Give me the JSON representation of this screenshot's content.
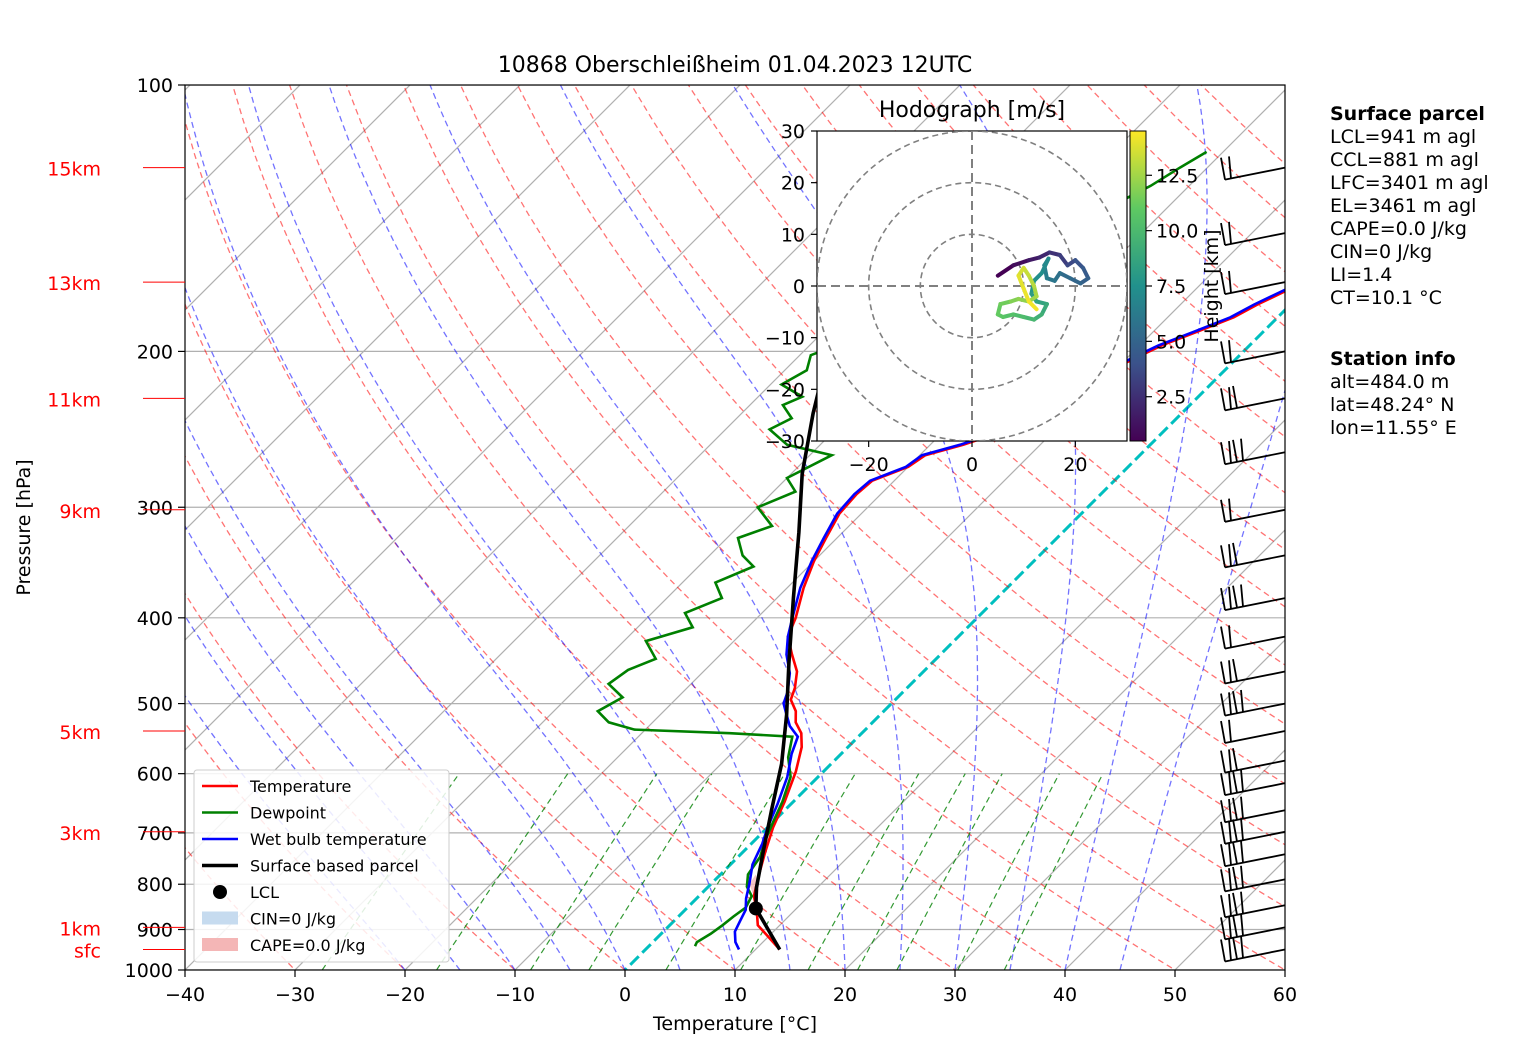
{
  "title": "10868 Oberschleißheim 01.04.2023 12UTC",
  "colors": {
    "temperature": "#ff0000",
    "dewpoint": "#008000",
    "wetbulb": "#0000ff",
    "parcel": "#000000",
    "dry_adiabat": "#ff0000",
    "moist_adiabat": "#0000ff",
    "mixing_ratio": "#008000",
    "isotherm": "#00bfbf",
    "height": "#ff0000"
  },
  "chart_data": {
    "type": "line",
    "subtype": "skew-T log-P",
    "xlabel": "Temperature [°C]",
    "ylabel": "Pressure [hPa]",
    "xlim": [
      -40,
      60
    ],
    "ylim": [
      1000,
      100
    ],
    "x_ticks": [
      -40,
      -30,
      -20,
      -10,
      0,
      10,
      20,
      30,
      40,
      50,
      60
    ],
    "y_ticks": [
      100,
      200,
      300,
      400,
      500,
      600,
      700,
      800,
      900,
      1000
    ],
    "grid": true,
    "height_labels": [
      {
        "label": "15km",
        "p": 124
      },
      {
        "label": "13km",
        "p": 167
      },
      {
        "label": "11km",
        "p": 226
      },
      {
        "label": "9km",
        "p": 302
      },
      {
        "label": "5km",
        "p": 537
      },
      {
        "label": "3km",
        "p": 698
      },
      {
        "label": "1km",
        "p": 895
      },
      {
        "label": "sfc",
        "p": 948
      }
    ],
    "highlight_isotherm_c": 0,
    "series": [
      {
        "name": "Temperature",
        "points": [
          [
            12.2,
            948
          ],
          [
            10,
            917
          ],
          [
            8,
            890
          ],
          [
            6.5,
            855
          ],
          [
            5,
            825
          ],
          [
            3.5,
            780
          ],
          [
            2,
            735
          ],
          [
            0.5,
            690
          ],
          [
            -0.8,
            645
          ],
          [
            -2.5,
            597
          ],
          [
            -4.2,
            560
          ],
          [
            -5.5,
            540
          ],
          [
            -7,
            525
          ],
          [
            -8,
            510
          ],
          [
            -9.5,
            495
          ],
          [
            -10.2,
            480
          ],
          [
            -11.5,
            460
          ],
          [
            -13.5,
            440
          ],
          [
            -15.5,
            420
          ],
          [
            -16.5,
            400
          ],
          [
            -18.5,
            370
          ],
          [
            -20,
            345
          ],
          [
            -21,
            325
          ],
          [
            -22,
            305
          ],
          [
            -22.2,
            290
          ],
          [
            -22,
            280
          ],
          [
            -20,
            270
          ],
          [
            -19.5,
            262
          ],
          [
            -17,
            255
          ],
          [
            -14.5,
            246
          ],
          [
            -13,
            237
          ],
          [
            -12,
            225
          ],
          [
            -11.5,
            215
          ],
          [
            -9.5,
            205
          ],
          [
            -8,
            197
          ],
          [
            -6,
            190
          ],
          [
            -4,
            183
          ],
          [
            -3,
            177
          ],
          [
            -1,
            168
          ],
          [
            -0.5,
            160
          ],
          [
            1,
            152
          ],
          [
            2,
            145
          ],
          [
            3,
            138
          ],
          [
            5,
            132
          ],
          [
            6,
            128
          ],
          [
            7.5,
            125
          ],
          [
            9,
            122
          ],
          [
            10,
            118
          ],
          [
            10.5,
            115
          ],
          [
            10.2,
            113
          ]
        ]
      },
      {
        "name": "Dewpoint",
        "points": [
          [
            4.2,
            940
          ],
          [
            4,
            930
          ],
          [
            4.5,
            910
          ],
          [
            4.8,
            890
          ],
          [
            5,
            870
          ],
          [
            5.3,
            850
          ],
          [
            4.8,
            825
          ],
          [
            3.5,
            805
          ],
          [
            2.5,
            780
          ],
          [
            2,
            745
          ],
          [
            1,
            715
          ],
          [
            0,
            680
          ],
          [
            -1,
            645
          ],
          [
            -2.5,
            605
          ],
          [
            -4.5,
            575
          ],
          [
            -6,
            545
          ],
          [
            -12,
            540
          ],
          [
            -21,
            535
          ],
          [
            -24,
            525
          ],
          [
            -26,
            510
          ],
          [
            -25,
            492
          ],
          [
            -27.5,
            475
          ],
          [
            -27,
            458
          ],
          [
            -25.5,
            445
          ],
          [
            -28,
            425
          ],
          [
            -25,
            410
          ],
          [
            -27,
            395
          ],
          [
            -25,
            380
          ],
          [
            -27,
            365
          ],
          [
            -25,
            350
          ],
          [
            -27,
            340
          ],
          [
            -29,
            325
          ],
          [
            -27,
            315
          ],
          [
            -30,
            300
          ],
          [
            -28,
            288
          ],
          [
            -30,
            278
          ],
          [
            -28,
            262
          ],
          [
            -33,
            255
          ],
          [
            -36,
            245
          ],
          [
            -35,
            238
          ],
          [
            -37,
            230
          ],
          [
            -36,
            225
          ],
          [
            -39,
            218
          ],
          [
            -38,
            210
          ],
          [
            -39,
            202
          ],
          [
            -37,
            195
          ],
          [
            -36,
            188
          ],
          [
            -34,
            180
          ],
          [
            -32,
            172
          ],
          [
            -30,
            165
          ],
          [
            -29,
            158
          ],
          [
            -27.5,
            150
          ],
          [
            -26.5,
            143
          ],
          [
            -25,
            136
          ],
          [
            -23.5,
            130
          ],
          [
            -22.5,
            124
          ],
          [
            -21.5,
            119
          ]
        ]
      },
      {
        "name": "Wet bulb temperature",
        "points": [
          [
            8.5,
            948
          ],
          [
            7.5,
            930
          ],
          [
            6.5,
            905
          ],
          [
            6,
            880
          ],
          [
            5.5,
            855
          ],
          [
            4.5,
            830
          ],
          [
            3.5,
            800
          ],
          [
            2,
            760
          ],
          [
            1,
            720
          ],
          [
            0,
            690
          ],
          [
            -1.2,
            650
          ],
          [
            -2.8,
            605
          ],
          [
            -4.5,
            570
          ],
          [
            -5.5,
            545
          ],
          [
            -7.2,
            530
          ],
          [
            -8.5,
            515
          ],
          [
            -9.8,
            500
          ],
          [
            -10.5,
            485
          ],
          [
            -12,
            462
          ],
          [
            -14,
            440
          ],
          [
            -15.5,
            420
          ],
          [
            -16.8,
            400
          ],
          [
            -18.8,
            370
          ],
          [
            -20.2,
            345
          ],
          [
            -21.2,
            325
          ],
          [
            -22.2,
            305
          ],
          [
            -22.4,
            290
          ],
          [
            -22.2,
            280
          ],
          [
            -20.2,
            270
          ],
          [
            -19.8,
            262
          ],
          [
            -17.3,
            255
          ],
          [
            -14.8,
            246
          ],
          [
            -13.3,
            237
          ],
          [
            -12.3,
            225
          ],
          [
            -11.8,
            215
          ],
          [
            -9.8,
            205
          ],
          [
            -8.3,
            197
          ],
          [
            -6.3,
            190
          ],
          [
            -4.3,
            183
          ],
          [
            -3.3,
            177
          ],
          [
            -1.3,
            168
          ],
          [
            -0.8,
            160
          ],
          [
            0.7,
            152
          ],
          [
            1.7,
            145
          ],
          [
            2.7,
            138
          ],
          [
            4.7,
            132
          ],
          [
            5.7,
            128
          ],
          [
            7.2,
            125
          ],
          [
            8.7,
            122
          ],
          [
            9.7,
            118
          ],
          [
            10.2,
            115
          ],
          [
            9.9,
            113
          ]
        ]
      },
      {
        "name": "Surface based parcel",
        "points": [
          [
            12.2,
            948
          ],
          [
            6.3,
            852
          ],
          [
            4.5,
            808
          ],
          [
            2,
            740
          ],
          [
            -1.2,
            660
          ],
          [
            -4.5,
            585
          ],
          [
            -8.5,
            515
          ],
          [
            -13,
            450
          ],
          [
            -18.5,
            380
          ],
          [
            -24,
            320
          ],
          [
            -29,
            275
          ],
          [
            -33.5,
            235
          ],
          [
            -37.5,
            202
          ],
          [
            -40.8,
            176
          ],
          [
            -44.3,
            155
          ]
        ]
      }
    ],
    "lcl": {
      "label": "LCL",
      "t": 6.3,
      "p": 852
    },
    "legend": {
      "placement": "lower-left",
      "entries": [
        "Temperature",
        "Dewpoint",
        "Wet bulb temperature",
        "Surface based parcel",
        "LCL",
        "CIN=0 J/kg",
        "CAPE=0.0 J/kg"
      ]
    },
    "wind_barbs_p": [
      124,
      147,
      167,
      200,
      226,
      260,
      302,
      340,
      380,
      420,
      460,
      500,
      537,
      580,
      615,
      660,
      698,
      740,
      790,
      845,
      895,
      948
    ],
    "hodograph": {
      "title": "Hodograph [m/s]",
      "xlim": [
        -30,
        30
      ],
      "ylim": [
        -30,
        30
      ],
      "ticks": [
        -20,
        0,
        20
      ],
      "yticks": [
        -30,
        -20,
        -10,
        0,
        10,
        20,
        30
      ],
      "rings": [
        10,
        20,
        30
      ],
      "colorbar_label": "Height [km]",
      "colorbar_ticks": [
        "2.5",
        "5.0",
        "7.5",
        "10.0",
        "12.5"
      ],
      "colorbar_range": [
        0.5,
        14.5
      ],
      "points": [
        [
          5,
          2,
          0.5
        ],
        [
          8,
          4,
          1.0
        ],
        [
          11,
          5,
          1.6
        ],
        [
          13,
          5.5,
          2.1
        ],
        [
          15,
          6.5,
          2.6
        ],
        [
          17,
          6,
          3.1
        ],
        [
          18.5,
          4,
          3.6
        ],
        [
          20,
          5,
          4.1
        ],
        [
          21.5,
          3.5,
          4.5
        ],
        [
          22.5,
          1.5,
          4.8
        ],
        [
          21,
          0.5,
          5.1
        ],
        [
          19,
          1.5,
          5.4
        ],
        [
          17,
          2.5,
          5.7
        ],
        [
          16,
          1,
          6.0
        ],
        [
          14.5,
          1.5,
          6.4
        ],
        [
          14,
          4,
          6.8
        ],
        [
          14.8,
          5.3,
          7.1
        ],
        [
          13.5,
          2.5,
          7.4
        ],
        [
          12,
          1,
          7.8
        ],
        [
          11.5,
          -1.5,
          8.2
        ],
        [
          12.5,
          -3,
          8.6
        ],
        [
          14.5,
          -3.5,
          9.0
        ],
        [
          13.5,
          -5.5,
          9.4
        ],
        [
          12,
          -6.5,
          9.8
        ],
        [
          10,
          -6,
          10.2
        ],
        [
          8,
          -5.5,
          10.5
        ],
        [
          6,
          -6,
          10.8
        ],
        [
          5,
          -5.5,
          11.1
        ],
        [
          5.5,
          -3.5,
          11.4
        ],
        [
          7.5,
          -3,
          11.8
        ],
        [
          9,
          -2.5,
          12.1
        ],
        [
          11,
          -3,
          12.4
        ],
        [
          12.5,
          -2,
          12.7
        ],
        [
          12,
          0,
          13.0
        ],
        [
          11,
          2,
          13.3
        ],
        [
          10,
          3.5,
          13.6
        ],
        [
          9,
          2,
          13.9
        ],
        [
          10,
          -0.5,
          14.1
        ],
        [
          11,
          -3,
          14.3
        ],
        [
          12.5,
          -4.5,
          14.5
        ]
      ]
    }
  },
  "surface_parcel": {
    "header": "Surface parcel",
    "lines": [
      "LCL=941 m agl",
      "CCL=881 m agl",
      "LFC=3401 m agl",
      "EL=3461 m agl",
      "CAPE=0.0 J/kg",
      "CIN=0 J/kg",
      "LI=1.4",
      "CT=10.1 °C"
    ]
  },
  "station_info": {
    "header": "Station info",
    "lines": [
      "alt=484.0 m",
      "lat=48.24° N",
      "lon=11.55° E"
    ]
  }
}
